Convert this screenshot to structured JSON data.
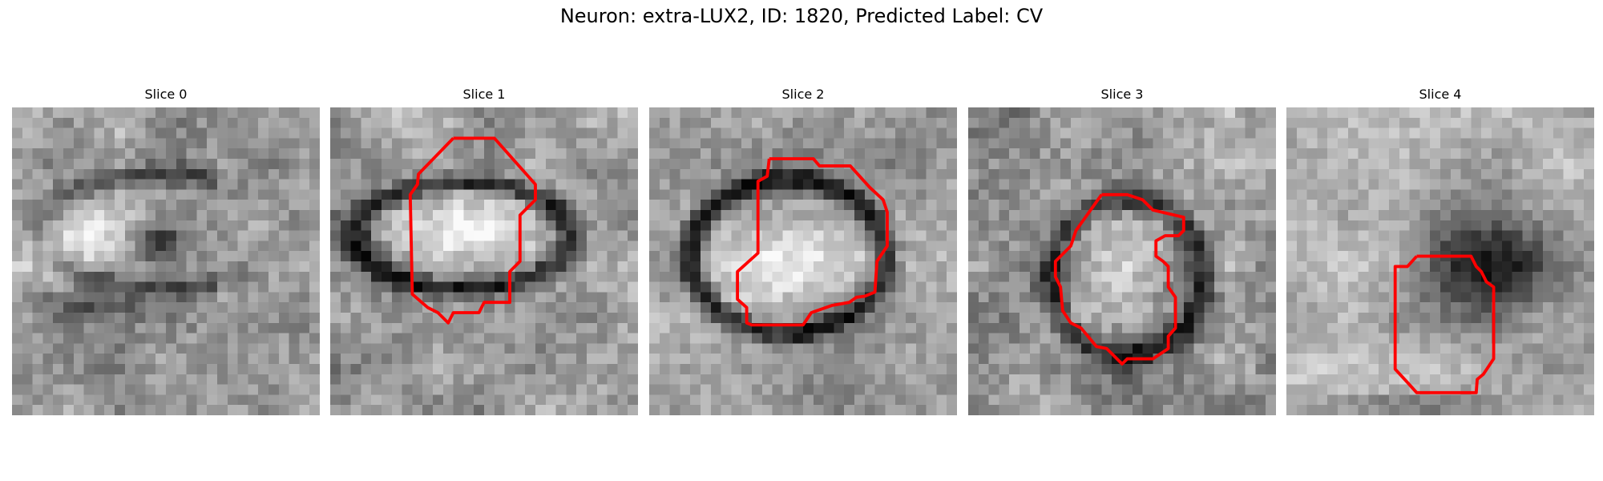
{
  "figure": {
    "title": "Neuron: extra-LUX2, ID: 1820, Predicted Label: CV",
    "contour_color": "#ff0000",
    "colormap": "grayscale"
  },
  "panels": [
    {
      "title": "Slice 0",
      "has_contour": false
    },
    {
      "title": "Slice 1",
      "has_contour": true
    },
    {
      "title": "Slice 2",
      "has_contour": true
    },
    {
      "title": "Slice 3",
      "has_contour": true
    },
    {
      "title": "Slice 4",
      "has_contour": true
    }
  ]
}
